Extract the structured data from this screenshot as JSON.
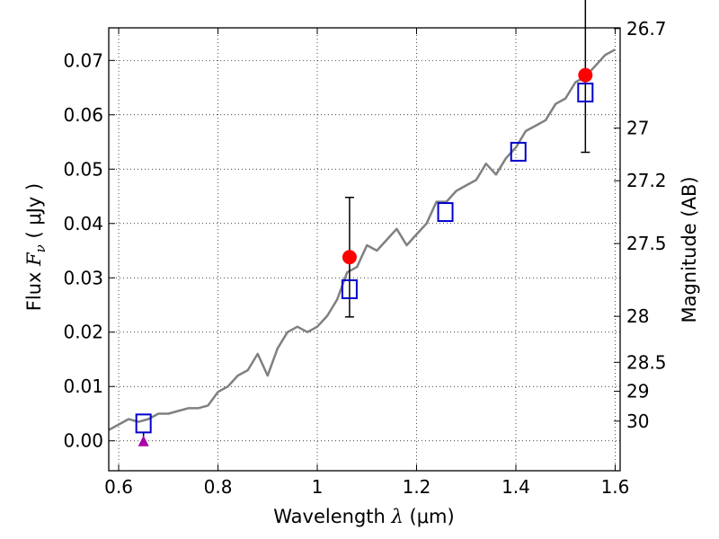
{
  "chart_data": {
    "type": "line",
    "xlabel": {
      "prefix": "Wavelength ",
      "symbol": "λ",
      "unit": " (μm)"
    },
    "ylabel": {
      "prefix": "Flux ",
      "symbol": "F",
      "subscript": "ν",
      "unit": " ( μJy )"
    },
    "y2label": "Magnitude (AB)",
    "xlim": [
      0.58,
      1.61
    ],
    "ylim": [
      -0.0055,
      0.076
    ],
    "x_ticks": [
      0.6,
      0.8,
      1,
      1.2,
      1.4,
      1.6
    ],
    "x_tick_labels": [
      "0.6",
      "0.8",
      "1",
      "1.2",
      "1.4",
      "1.6"
    ],
    "y_ticks": [
      0.0,
      0.01,
      0.02,
      0.03,
      0.04,
      0.05,
      0.06,
      0.07
    ],
    "y_tick_labels": [
      "0.00",
      "0.01",
      "0.02",
      "0.03",
      "0.04",
      "0.05",
      "0.06",
      "0.07"
    ],
    "y2_ticks": [
      26.7,
      27,
      27.2,
      27.5,
      28,
      28.5,
      29,
      30
    ],
    "y2_tick_labels": [
      "26.7",
      "27",
      "27.2",
      "27.5",
      "28",
      "28.5",
      "29",
      "30"
    ],
    "grid": true,
    "colors": {
      "model": "#808080",
      "observed": "#ff0000",
      "model_box": "#0000cc",
      "upper_limit": "#aa00aa",
      "errorbar": "#000000"
    },
    "series": [
      {
        "kind": "model_sed_line",
        "x": [
          0.58,
          0.6,
          0.62,
          0.64,
          0.66,
          0.68,
          0.7,
          0.72,
          0.74,
          0.76,
          0.78,
          0.8,
          0.82,
          0.84,
          0.86,
          0.88,
          0.9,
          0.92,
          0.94,
          0.96,
          0.98,
          1.0,
          1.02,
          1.04,
          1.06,
          1.08,
          1.1,
          1.12,
          1.14,
          1.16,
          1.18,
          1.2,
          1.22,
          1.24,
          1.26,
          1.28,
          1.3,
          1.32,
          1.34,
          1.36,
          1.38,
          1.4,
          1.42,
          1.44,
          1.46,
          1.48,
          1.5,
          1.52,
          1.54,
          1.56,
          1.58,
          1.6
        ],
        "y": [
          0.002,
          0.003,
          0.004,
          0.0035,
          0.004,
          0.005,
          0.005,
          0.0055,
          0.006,
          0.006,
          0.0065,
          0.009,
          0.01,
          0.012,
          0.013,
          0.016,
          0.012,
          0.017,
          0.02,
          0.021,
          0.02,
          0.021,
          0.023,
          0.026,
          0.031,
          0.032,
          0.036,
          0.035,
          0.037,
          0.039,
          0.036,
          0.038,
          0.04,
          0.044,
          0.044,
          0.046,
          0.047,
          0.048,
          0.051,
          0.049,
          0.052,
          0.054,
          0.057,
          0.058,
          0.059,
          0.062,
          0.063,
          0.066,
          0.067,
          0.069,
          0.071,
          0.072
        ]
      },
      {
        "kind": "observed_flux_points",
        "x": [
          1.065,
          1.54
        ],
        "y": [
          0.0338,
          0.0673
        ],
        "yerr": [
          0.011,
          0.0142
        ]
      },
      {
        "kind": "model_band_flux_boxes",
        "x": [
          0.65,
          1.065,
          1.258,
          1.405,
          1.54
        ],
        "y": [
          0.0032,
          0.0279,
          0.0421,
          0.0532,
          0.0641
        ]
      },
      {
        "kind": "upper_limit_marker",
        "x": [
          0.65
        ],
        "y": [
          0.0
        ],
        "yerr": [
          0.0015
        ]
      }
    ]
  }
}
